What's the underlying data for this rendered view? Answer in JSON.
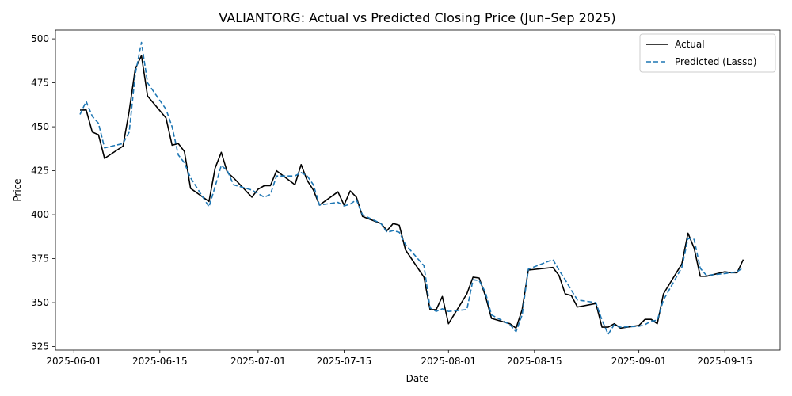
{
  "chart_data": {
    "type": "line",
    "title": "VALIANTORG: Actual vs Predicted Closing Price (Jun–Sep 2025)",
    "xlabel": "Date",
    "ylabel": "Price",
    "xlim": [
      "2025-05-29",
      "2025-09-24"
    ],
    "ylim": [
      323,
      505
    ],
    "x_ticks": [
      "2025-06-01",
      "2025-06-15",
      "2025-07-01",
      "2025-07-15",
      "2025-08-01",
      "2025-08-15",
      "2025-09-01",
      "2025-09-15"
    ],
    "y_ticks": [
      325,
      350,
      375,
      400,
      425,
      450,
      475,
      500
    ],
    "grid": false,
    "legend_position": "top-right",
    "series": [
      {
        "name": "Actual",
        "color": "#000000",
        "style": "solid",
        "points": [
          [
            "2025-06-02",
            459.5
          ],
          [
            "2025-06-03",
            459.6
          ],
          [
            "2025-06-04",
            447.0
          ],
          [
            "2025-06-05",
            445.5
          ],
          [
            "2025-06-06",
            432.0
          ],
          [
            "2025-06-09",
            439.0
          ],
          [
            "2025-06-10",
            459.0
          ],
          [
            "2025-06-11",
            483.0
          ],
          [
            "2025-06-12",
            490.5
          ],
          [
            "2025-06-13",
            467.5
          ],
          [
            "2025-06-16",
            455.0
          ],
          [
            "2025-06-17",
            439.5
          ],
          [
            "2025-06-18",
            440.5
          ],
          [
            "2025-06-19",
            436.0
          ],
          [
            "2025-06-20",
            415.0
          ],
          [
            "2025-06-23",
            407.5
          ],
          [
            "2025-06-24",
            426.5
          ],
          [
            "2025-06-25",
            435.5
          ],
          [
            "2025-06-26",
            424.0
          ],
          [
            "2025-06-27",
            421.0
          ],
          [
            "2025-06-30",
            410.0
          ],
          [
            "2025-07-01",
            414.5
          ],
          [
            "2025-07-02",
            416.5
          ],
          [
            "2025-07-03",
            416.5
          ],
          [
            "2025-07-04",
            425.0
          ],
          [
            "2025-07-07",
            417.0
          ],
          [
            "2025-07-08",
            428.5
          ],
          [
            "2025-07-09",
            419.5
          ],
          [
            "2025-07-10",
            414.0
          ],
          [
            "2025-07-11",
            405.5
          ],
          [
            "2025-07-14",
            413.0
          ],
          [
            "2025-07-15",
            405.5
          ],
          [
            "2025-07-16",
            413.5
          ],
          [
            "2025-07-17",
            410.0
          ],
          [
            "2025-07-18",
            399.0
          ],
          [
            "2025-07-21",
            395.0
          ],
          [
            "2025-07-22",
            391.0
          ],
          [
            "2025-07-23",
            395.0
          ],
          [
            "2025-07-24",
            394.0
          ],
          [
            "2025-07-25",
            380.0
          ],
          [
            "2025-07-28",
            364.5
          ],
          [
            "2025-07-29",
            346.0
          ],
          [
            "2025-07-30",
            346.0
          ],
          [
            "2025-07-31",
            353.5
          ],
          [
            "2025-08-01",
            338.0
          ],
          [
            "2025-08-04",
            355.0
          ],
          [
            "2025-08-05",
            364.5
          ],
          [
            "2025-08-06",
            364.0
          ],
          [
            "2025-08-07",
            354.0
          ],
          [
            "2025-08-08",
            341.0
          ],
          [
            "2025-08-11",
            338.0
          ],
          [
            "2025-08-12",
            335.5
          ],
          [
            "2025-08-13",
            346.0
          ],
          [
            "2025-08-14",
            368.5
          ],
          [
            "2025-08-18",
            370.0
          ],
          [
            "2025-08-19",
            365.5
          ],
          [
            "2025-08-20",
            355.0
          ],
          [
            "2025-08-21",
            354.0
          ],
          [
            "2025-08-22",
            347.5
          ],
          [
            "2025-08-25",
            349.5
          ],
          [
            "2025-08-26",
            336.0
          ],
          [
            "2025-08-27",
            336.0
          ],
          [
            "2025-08-28",
            338.0
          ],
          [
            "2025-08-29",
            335.5
          ],
          [
            "2025-09-01",
            337.0
          ],
          [
            "2025-09-02",
            340.5
          ],
          [
            "2025-09-03",
            340.5
          ],
          [
            "2025-09-04",
            338.0
          ],
          [
            "2025-09-05",
            355.0
          ],
          [
            "2025-09-08",
            372.0
          ],
          [
            "2025-09-09",
            389.5
          ],
          [
            "2025-09-10",
            381.0
          ],
          [
            "2025-09-11",
            365.0
          ],
          [
            "2025-09-12",
            365.0
          ],
          [
            "2025-09-15",
            367.5
          ],
          [
            "2025-09-16",
            367.0
          ],
          [
            "2025-09-17",
            367.0
          ],
          [
            "2025-09-18",
            374.5
          ]
        ]
      },
      {
        "name": "Predicted (Lasso)",
        "color": "#1f77b4",
        "style": "dashed",
        "points": [
          [
            "2025-06-02",
            457.0
          ],
          [
            "2025-06-03",
            464.5
          ],
          [
            "2025-06-04",
            456.0
          ],
          [
            "2025-06-05",
            452.0
          ],
          [
            "2025-06-06",
            438.0
          ],
          [
            "2025-06-09",
            440.5
          ],
          [
            "2025-06-10",
            447.0
          ],
          [
            "2025-06-11",
            480.0
          ],
          [
            "2025-06-12",
            498.0
          ],
          [
            "2025-06-13",
            475.0
          ],
          [
            "2025-06-16",
            460.0
          ],
          [
            "2025-06-17",
            450.0
          ],
          [
            "2025-06-18",
            434.0
          ],
          [
            "2025-06-19",
            429.5
          ],
          [
            "2025-06-20",
            421.0
          ],
          [
            "2025-06-23",
            404.5
          ],
          [
            "2025-06-24",
            416.0
          ],
          [
            "2025-06-25",
            428.0
          ],
          [
            "2025-06-26",
            425.0
          ],
          [
            "2025-06-27",
            417.0
          ],
          [
            "2025-06-30",
            414.0
          ],
          [
            "2025-07-01",
            412.0
          ],
          [
            "2025-07-02",
            410.0
          ],
          [
            "2025-07-03",
            411.5
          ],
          [
            "2025-07-04",
            422.0
          ],
          [
            "2025-07-07",
            422.0
          ],
          [
            "2025-07-08",
            424.0
          ],
          [
            "2025-07-09",
            422.0
          ],
          [
            "2025-07-10",
            417.0
          ],
          [
            "2025-07-11",
            405.5
          ],
          [
            "2025-07-14",
            407.0
          ],
          [
            "2025-07-15",
            405.0
          ],
          [
            "2025-07-16",
            406.0
          ],
          [
            "2025-07-17",
            408.5
          ],
          [
            "2025-07-18",
            400.0
          ],
          [
            "2025-07-21",
            395.0
          ],
          [
            "2025-07-22",
            390.0
          ],
          [
            "2025-07-23",
            391.0
          ],
          [
            "2025-07-24",
            390.0
          ],
          [
            "2025-07-25",
            383.0
          ],
          [
            "2025-07-28",
            371.0
          ],
          [
            "2025-07-29",
            347.0
          ],
          [
            "2025-07-30",
            345.0
          ],
          [
            "2025-07-31",
            346.5
          ],
          [
            "2025-08-01",
            345.0
          ],
          [
            "2025-08-04",
            346.0
          ],
          [
            "2025-08-05",
            363.0
          ],
          [
            "2025-08-06",
            362.5
          ],
          [
            "2025-08-07",
            356.0
          ],
          [
            "2025-08-08",
            343.0
          ],
          [
            "2025-08-11",
            337.5
          ],
          [
            "2025-08-12",
            333.5
          ],
          [
            "2025-08-13",
            343.0
          ],
          [
            "2025-08-14",
            369.0
          ],
          [
            "2025-08-18",
            374.5
          ],
          [
            "2025-08-19",
            368.5
          ],
          [
            "2025-08-20",
            363.0
          ],
          [
            "2025-08-21",
            357.0
          ],
          [
            "2025-08-22",
            351.5
          ],
          [
            "2025-08-25",
            350.0
          ],
          [
            "2025-08-26",
            340.0
          ],
          [
            "2025-08-27",
            332.0
          ],
          [
            "2025-08-28",
            337.5
          ],
          [
            "2025-08-29",
            336.0
          ],
          [
            "2025-09-01",
            336.5
          ],
          [
            "2025-09-02",
            337.5
          ],
          [
            "2025-09-03",
            339.5
          ],
          [
            "2025-09-04",
            340.0
          ],
          [
            "2025-09-05",
            351.5
          ],
          [
            "2025-09-08",
            370.0
          ],
          [
            "2025-09-09",
            386.5
          ],
          [
            "2025-09-10",
            386.0
          ],
          [
            "2025-09-11",
            369.5
          ],
          [
            "2025-09-12",
            365.5
          ],
          [
            "2025-09-15",
            366.5
          ],
          [
            "2025-09-16",
            367.0
          ],
          [
            "2025-09-17",
            367.5
          ],
          [
            "2025-09-18",
            370.0
          ]
        ]
      }
    ]
  }
}
